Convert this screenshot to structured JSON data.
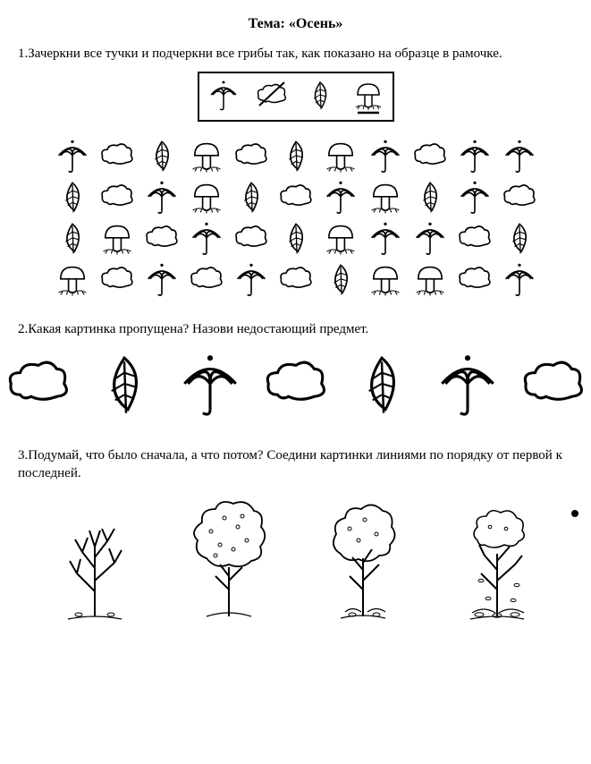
{
  "title": "Тема: «Осень»",
  "task1": "1.Зачеркни все тучки и подчеркни все грибы так, как показано на образце в рамочке.",
  "task2": "2.Какая картинка пропущена? Назови недостающий предмет.",
  "task3": "3.Подумай, что было сначала, а что потом? Соедини картинки линиями по порядку от первой к последней.",
  "example_icons": [
    "umbrella",
    "cloud-crossed",
    "leaf",
    "mushroom-underlined"
  ],
  "grid": {
    "rows": [
      [
        "umbrella",
        "cloud",
        "leaf",
        "mushroom",
        "cloud",
        "leaf",
        "mushroom",
        "umbrella",
        "cloud",
        "umbrella",
        "umbrella"
      ],
      [
        "leaf",
        "cloud",
        "umbrella",
        "mushroom",
        "leaf",
        "cloud",
        "umbrella",
        "mushroom",
        "leaf",
        "umbrella",
        "cloud"
      ],
      [
        "leaf",
        "mushroom",
        "cloud",
        "umbrella",
        "cloud",
        "leaf",
        "mushroom",
        "umbrella",
        "umbrella",
        "cloud",
        "leaf"
      ],
      [
        "mushroom",
        "cloud",
        "umbrella",
        "cloud",
        "umbrella",
        "cloud",
        "leaf",
        "mushroom",
        "mushroom",
        "cloud",
        "umbrella"
      ]
    ]
  },
  "sequence": [
    "cloud",
    "leaf",
    "umbrella",
    "cloud",
    "leaf",
    "umbrella",
    "cloud"
  ],
  "trees": [
    "tree-bare",
    "tree-full",
    "tree-half",
    "tree-falling"
  ],
  "colors": {
    "stroke": "#000000",
    "background": "#ffffff"
  },
  "stroke_width_sm": 1.5,
  "stroke_width_lg": 2
}
